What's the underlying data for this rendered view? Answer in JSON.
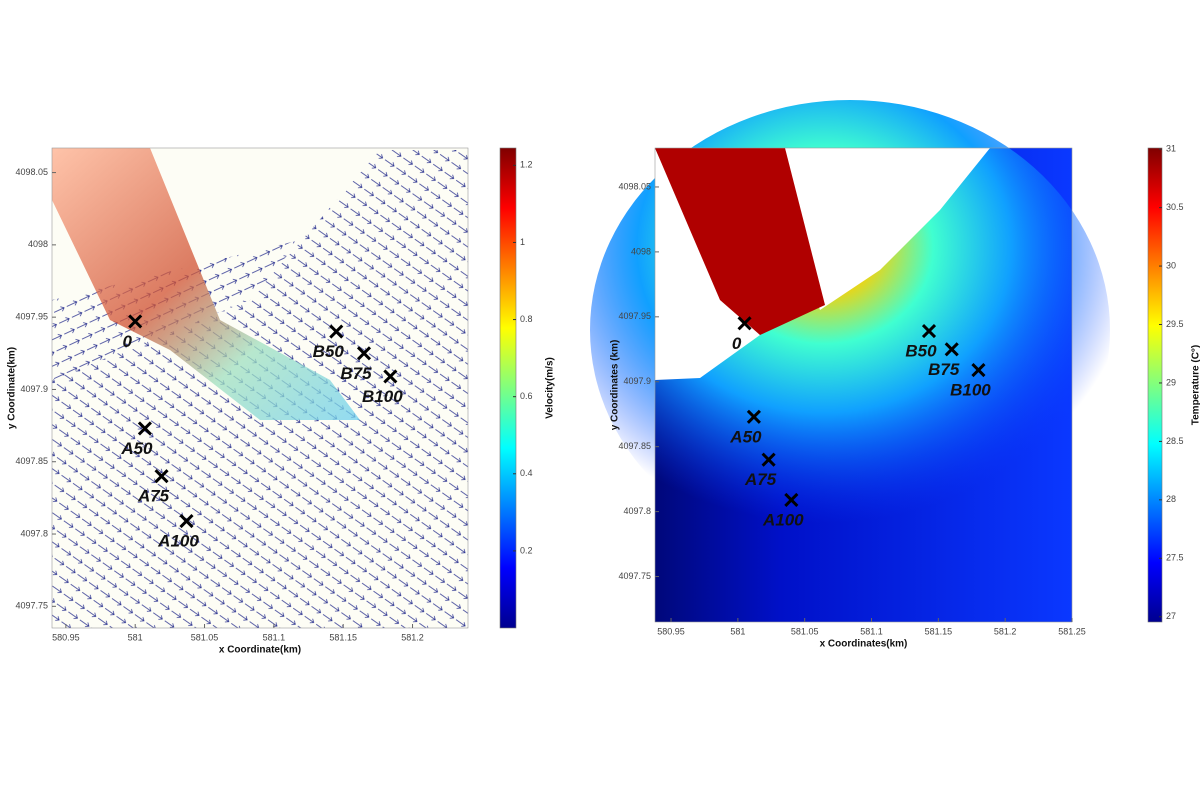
{
  "chart_data": [
    {
      "type": "quiver",
      "xlabel": "x Coordinate(km)",
      "ylabel": "y Coordinate(km)",
      "xlim": [
        580.94,
        581.24
      ],
      "ylim": [
        4097.735,
        4098.067
      ],
      "xticks": [
        580.95,
        581,
        581.05,
        581.1,
        581.15,
        581.2
      ],
      "yticks": [
        4097.75,
        4097.8,
        4097.85,
        4097.9,
        4097.95,
        4098,
        4098.05
      ],
      "colorbar": {
        "label": "Velocity(m/s)",
        "lim": [
          0,
          1.245
        ],
        "ticks": [
          0.2,
          0.4,
          0.6,
          0.8,
          1,
          1.2
        ]
      },
      "points": {
        "labels": [
          "0",
          "A50",
          "A75",
          "A100",
          "B50",
          "B75",
          "B100"
        ],
        "x": [
          581.0,
          581.007,
          581.019,
          581.037,
          581.145,
          581.165,
          581.184
        ],
        "y": [
          4097.947,
          4097.873,
          4097.84,
          4097.809,
          4097.94,
          4097.925,
          4097.909
        ]
      }
    },
    {
      "type": "contour",
      "xlabel": "x Coordinates(km)",
      "ylabel": "y Coordinates (km)",
      "xlim": [
        580.938,
        581.25
      ],
      "ylim": [
        4097.715,
        4098.08
      ],
      "xticks": [
        580.95,
        581,
        581.05,
        581.1,
        581.15,
        581.2,
        581.25
      ],
      "yticks": [
        4097.75,
        4097.8,
        4097.85,
        4097.9,
        4097.95,
        4098,
        4098.05
      ],
      "colorbar": {
        "label": "Temperature (C°)",
        "lim": [
          26.955,
          31.01
        ],
        "ticks": [
          27,
          27.5,
          28,
          28.5,
          29,
          29.5,
          30,
          30.5,
          31
        ]
      },
      "points": {
        "labels": [
          "0",
          "A50",
          "A75",
          "A100",
          "B50",
          "B75",
          "B100"
        ],
        "x": [
          581.005,
          581.012,
          581.023,
          581.04,
          581.143,
          581.16,
          581.18
        ],
        "y": [
          4097.945,
          4097.873,
          4097.84,
          4097.809,
          4097.939,
          4097.925,
          4097.909
        ]
      }
    }
  ]
}
